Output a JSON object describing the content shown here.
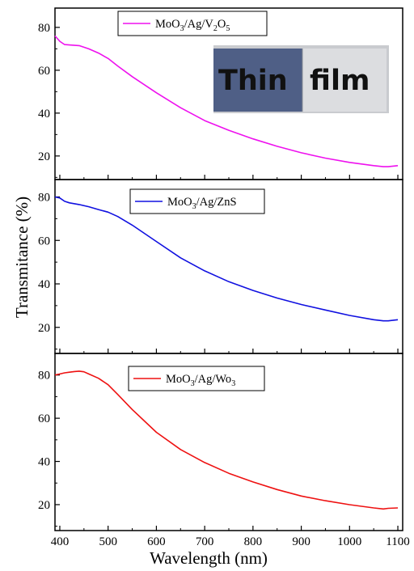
{
  "figure": {
    "xlabel": "Wavelength (nm)",
    "ylabel": "Transmitance (%)",
    "inset": {
      "left_text": "Thin",
      "right_text": "film",
      "film_color": "#4f5f86",
      "glass_color": "#dcdde0"
    }
  },
  "chart_data": [
    {
      "type": "line",
      "panel": "top",
      "legend_parts": [
        "MoO",
        "3",
        "/Ag/V",
        "2",
        "O",
        "5"
      ],
      "legend_position": "top-center",
      "color": "#ee11ee",
      "xlim": [
        390,
        1110
      ],
      "ylim": [
        9,
        89
      ],
      "xticks": [
        400,
        500,
        600,
        700,
        800,
        900,
        1000,
        1100
      ],
      "yticks": [
        20,
        40,
        60,
        80
      ],
      "ytick_labels": [
        "20",
        "40",
        "60",
        "80"
      ],
      "grid": false,
      "series": [
        {
          "x": [
            390,
            400,
            410,
            420,
            440,
            460,
            480,
            500,
            520,
            550,
            600,
            650,
            700,
            750,
            800,
            850,
            900,
            950,
            1000,
            1050,
            1070,
            1080,
            1100
          ],
          "y": [
            76,
            73.5,
            72,
            71.8,
            71.5,
            70,
            68,
            65.5,
            62,
            57,
            49.5,
            42.5,
            36.5,
            32,
            28,
            24.5,
            21.5,
            19,
            17,
            15.5,
            15,
            15,
            15.5
          ]
        }
      ]
    },
    {
      "type": "line",
      "panel": "middle",
      "legend_parts": [
        "MoO",
        "3",
        "/Ag/ZnS"
      ],
      "legend_position": "top-center",
      "color": "#1010e0",
      "xlim": [
        390,
        1110
      ],
      "ylim": [
        8,
        88
      ],
      "xticks": [
        400,
        500,
        600,
        700,
        800,
        900,
        1000,
        1100
      ],
      "yticks": [
        20,
        40,
        60,
        80
      ],
      "ytick_labels": [
        "20",
        "40",
        "60",
        "80"
      ],
      "grid": false,
      "series": [
        {
          "x": [
            390,
            400,
            410,
            420,
            440,
            460,
            480,
            500,
            520,
            550,
            600,
            650,
            700,
            750,
            800,
            850,
            900,
            950,
            1000,
            1050,
            1070,
            1080,
            1100
          ],
          "y": [
            80,
            79.5,
            78,
            77.3,
            76.5,
            75.5,
            74.2,
            73,
            71,
            67,
            59.5,
            52,
            46,
            41,
            37,
            33.5,
            30.5,
            28,
            25.5,
            23.5,
            23,
            23,
            23.5
          ]
        }
      ]
    },
    {
      "type": "line",
      "panel": "bottom",
      "legend_parts": [
        "MoO",
        "3",
        "/Ag/Wo",
        "3"
      ],
      "legend_position": "top-center",
      "color": "#ee1111",
      "xlim": [
        390,
        1110
      ],
      "ylim": [
        8,
        90
      ],
      "xticks": [
        400,
        500,
        600,
        700,
        800,
        900,
        1000,
        1100
      ],
      "xtick_labels": [
        "400",
        "500",
        "600",
        "700",
        "800",
        "900",
        "1000",
        "1100"
      ],
      "yticks": [
        20,
        40,
        60,
        80
      ],
      "ytick_labels": [
        "20",
        "40",
        "60",
        "80"
      ],
      "grid": false,
      "series": [
        {
          "x": [
            390,
            400,
            410,
            420,
            430,
            440,
            450,
            460,
            480,
            500,
            520,
            550,
            600,
            650,
            700,
            750,
            800,
            850,
            900,
            950,
            1000,
            1050,
            1070,
            1080,
            1100
          ],
          "y": [
            80,
            80.5,
            81,
            81.3,
            81.6,
            81.8,
            81.5,
            80.5,
            78.5,
            75.5,
            71,
            64,
            53.5,
            45.5,
            39.5,
            34.5,
            30.5,
            27,
            24,
            21.8,
            20,
            18.5,
            18,
            18.3,
            18.5
          ]
        }
      ]
    }
  ]
}
